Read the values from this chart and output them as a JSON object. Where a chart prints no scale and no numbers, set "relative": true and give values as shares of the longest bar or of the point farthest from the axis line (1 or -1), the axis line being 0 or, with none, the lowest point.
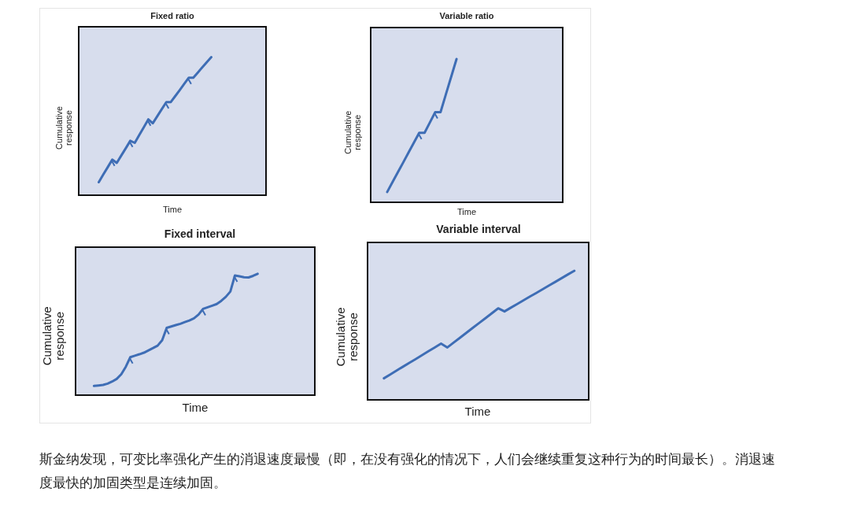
{
  "chart_data": [
    {
      "type": "line",
      "title": "Fixed ratio",
      "xlabel": "Time",
      "ylabel": "Cumulative response",
      "relative": true,
      "color": "#3e6db5",
      "categories": [
        null,
        null,
        null,
        null,
        null,
        null,
        null,
        null,
        null,
        null,
        null,
        null,
        null,
        null,
        null,
        null,
        null,
        null,
        null,
        null,
        null,
        null,
        null,
        null,
        null,
        null
      ],
      "values": [
        0.094,
        0.149,
        0.203,
        0.258,
        0.234,
        0.287,
        0.34,
        0.394,
        0.379,
        0.436,
        0.492,
        0.549,
        0.521,
        0.572,
        0.623,
        0.674,
        0.674,
        0.718,
        0.762,
        0.807,
        0.851,
        0.851,
        0.888,
        0.926,
        0.963,
        1
      ]
    },
    {
      "type": "line",
      "title": "Variable ratio",
      "xlabel": "Time",
      "ylabel": "Cumulative response",
      "relative": true,
      "color": "#3e6db5",
      "categories": [
        null,
        null,
        null,
        null,
        null,
        null,
        null,
        null,
        null,
        null,
        null,
        null,
        null,
        null
      ],
      "values": [
        0.072,
        0.141,
        0.21,
        0.278,
        0.347,
        0.416,
        0.485,
        0.485,
        0.557,
        0.629,
        0.629,
        0.753,
        0.876,
        1
      ]
    },
    {
      "type": "line",
      "title": "Fixed interval",
      "xlabel": "Time",
      "ylabel": "Cumulative response",
      "relative": true,
      "color": "#3e6db5",
      "categories": [
        null,
        null,
        null,
        null,
        null,
        null,
        null,
        null,
        null,
        null,
        null,
        null,
        null,
        null,
        null,
        null,
        null,
        null,
        null,
        null,
        null,
        null,
        null,
        null,
        null,
        null,
        null,
        null,
        null,
        null,
        null,
        null,
        null,
        null,
        null,
        null,
        null
      ],
      "values": [
        0.076,
        0.08,
        0.084,
        0.095,
        0.112,
        0.134,
        0.172,
        0.234,
        0.313,
        0.325,
        0.337,
        0.35,
        0.369,
        0.388,
        0.408,
        0.453,
        0.555,
        0.566,
        0.577,
        0.588,
        0.602,
        0.616,
        0.633,
        0.664,
        0.711,
        0.724,
        0.737,
        0.751,
        0.777,
        0.81,
        0.854,
        0.986,
        0.979,
        0.971,
        0.97,
        0.983,
        1
      ]
    },
    {
      "type": "line",
      "title": "Variable interval",
      "xlabel": "Time",
      "ylabel": "Cumulative response",
      "relative": true,
      "color": "#3e6db5",
      "categories": [
        null,
        null,
        null,
        null,
        null,
        null,
        null,
        null,
        null,
        null,
        null,
        null,
        null,
        null,
        null,
        null,
        null,
        null,
        null,
        null,
        null,
        null,
        null,
        null,
        null,
        null,
        null,
        null,
        null,
        null,
        null
      ],
      "values": [
        0.167,
        0.197,
        0.227,
        0.257,
        0.287,
        0.316,
        0.346,
        0.376,
        0.406,
        0.436,
        0.406,
        0.444,
        0.482,
        0.52,
        0.558,
        0.595,
        0.633,
        0.671,
        0.709,
        0.685,
        0.714,
        0.742,
        0.771,
        0.8,
        0.828,
        0.857,
        0.886,
        0.914,
        0.943,
        0.972,
        1
      ],
      "annotations": [
        "斯金纳发现，可变比率强化产生的消退速度最慢（即，在没有强化的情况下，人们会继续重复这种行为的时间最长）。消退速度最快的加固类型是连续加固。"
      ]
    }
  ]
}
